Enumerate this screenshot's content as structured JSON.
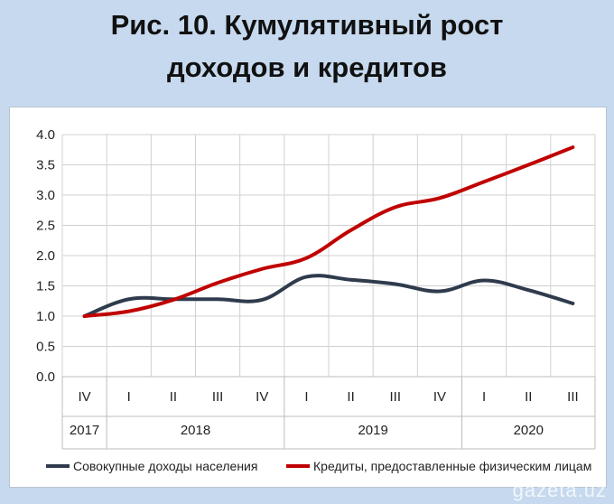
{
  "page": {
    "title_line1": "Рис. 10. Кумулятивный рост",
    "title_line2": "доходов и кредитов",
    "watermark": "gazeta.uz"
  },
  "colors": {
    "background": "#c6d9ee",
    "income": "#2f3b4d",
    "credit": "#c00000",
    "grid": "#d0d0d0"
  },
  "chart_data": {
    "type": "line",
    "title": "",
    "xlabel": "",
    "ylabel": "",
    "ylim": [
      0,
      4
    ],
    "yticks": [
      "0.0",
      "0.5",
      "1.0",
      "1.5",
      "2.0",
      "2.5",
      "3.0",
      "3.5",
      "4.0"
    ],
    "grid": true,
    "legend_position": "bottom",
    "categories": [
      "IV",
      "I",
      "II",
      "III",
      "IV",
      "I",
      "II",
      "III",
      "IV",
      "I",
      "II",
      "III"
    ],
    "years": [
      {
        "label": "2017",
        "span": 1
      },
      {
        "label": "2018",
        "span": 4
      },
      {
        "label": "2019",
        "span": 4
      },
      {
        "label": "2020",
        "span": 3
      }
    ],
    "series": [
      {
        "name": "Совокупные доходы населения",
        "color": "#2f3b4d",
        "values": [
          1.0,
          1.28,
          1.28,
          1.28,
          1.27,
          1.65,
          1.6,
          1.53,
          1.41,
          1.59,
          1.43,
          1.21
        ]
      },
      {
        "name": "Кредиты, предоставленные физическим лицам",
        "color": "#c00000",
        "values": [
          1.0,
          1.08,
          1.27,
          1.55,
          1.78,
          1.96,
          2.42,
          2.8,
          2.95,
          3.22,
          3.5,
          3.79
        ]
      }
    ]
  }
}
